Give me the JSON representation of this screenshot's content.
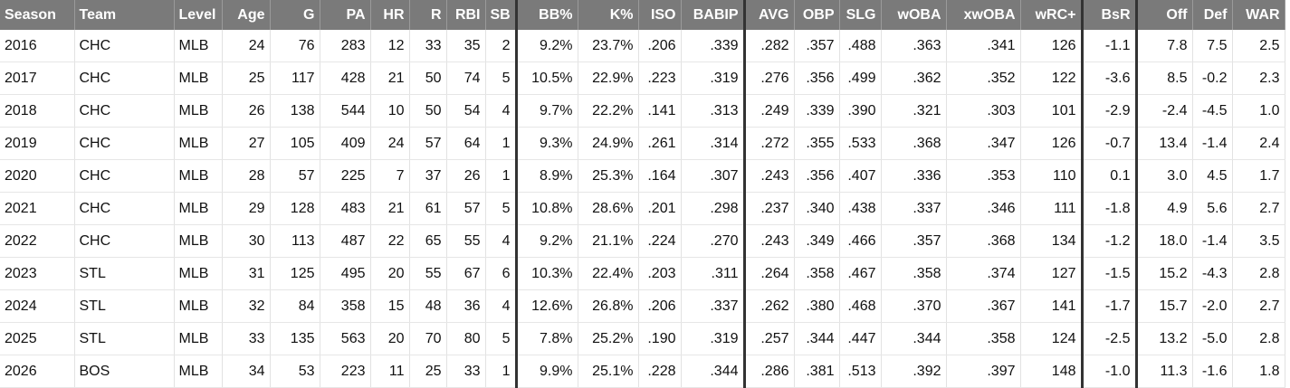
{
  "table": {
    "header": [
      "Season",
      "Team",
      "Level",
      "Age",
      "G",
      "PA",
      "HR",
      "R",
      "RBI",
      "SB",
      "BB%",
      "K%",
      "ISO",
      "BABIP",
      "AVG",
      "OBP",
      "SLG",
      "wOBA",
      "xwOBA",
      "wRC+",
      "BsR",
      "Off",
      "Def",
      "WAR"
    ],
    "rows": [
      [
        "2016",
        "CHC",
        "MLB",
        "24",
        "76",
        "283",
        "12",
        "33",
        "35",
        "2",
        "9.2%",
        "23.7%",
        ".206",
        ".339",
        ".282",
        ".357",
        ".488",
        ".363",
        ".341",
        "126",
        "-1.1",
        "7.8",
        "7.5",
        "2.5"
      ],
      [
        "2017",
        "CHC",
        "MLB",
        "25",
        "117",
        "428",
        "21",
        "50",
        "74",
        "5",
        "10.5%",
        "22.9%",
        ".223",
        ".319",
        ".276",
        ".356",
        ".499",
        ".362",
        ".352",
        "122",
        "-3.6",
        "8.5",
        "-0.2",
        "2.3"
      ],
      [
        "2018",
        "CHC",
        "MLB",
        "26",
        "138",
        "544",
        "10",
        "50",
        "54",
        "4",
        "9.7%",
        "22.2%",
        ".141",
        ".313",
        ".249",
        ".339",
        ".390",
        ".321",
        ".303",
        "101",
        "-2.9",
        "-2.4",
        "-4.5",
        "1.0"
      ],
      [
        "2019",
        "CHC",
        "MLB",
        "27",
        "105",
        "409",
        "24",
        "57",
        "64",
        "1",
        "9.3%",
        "24.9%",
        ".261",
        ".314",
        ".272",
        ".355",
        ".533",
        ".368",
        ".347",
        "126",
        "-0.7",
        "13.4",
        "-1.4",
        "2.4"
      ],
      [
        "2020",
        "CHC",
        "MLB",
        "28",
        "57",
        "225",
        "7",
        "37",
        "26",
        "1",
        "8.9%",
        "25.3%",
        ".164",
        ".307",
        ".243",
        ".356",
        ".407",
        ".336",
        ".353",
        "110",
        "0.1",
        "3.0",
        "4.5",
        "1.7"
      ],
      [
        "2021",
        "CHC",
        "MLB",
        "29",
        "128",
        "483",
        "21",
        "61",
        "57",
        "5",
        "10.8%",
        "28.6%",
        ".201",
        ".298",
        ".237",
        ".340",
        ".438",
        ".337",
        ".346",
        "111",
        "-1.8",
        "4.9",
        "5.6",
        "2.7"
      ],
      [
        "2022",
        "CHC",
        "MLB",
        "30",
        "113",
        "487",
        "22",
        "65",
        "55",
        "4",
        "9.2%",
        "21.1%",
        ".224",
        ".270",
        ".243",
        ".349",
        ".466",
        ".357",
        ".368",
        "134",
        "-1.2",
        "18.0",
        "-1.4",
        "3.5"
      ],
      [
        "2023",
        "STL",
        "MLB",
        "31",
        "125",
        "495",
        "20",
        "55",
        "67",
        "6",
        "10.3%",
        "22.4%",
        ".203",
        ".311",
        ".264",
        ".358",
        ".467",
        ".358",
        ".374",
        "127",
        "-1.5",
        "15.2",
        "-4.3",
        "2.8"
      ],
      [
        "2024",
        "STL",
        "MLB",
        "32",
        "84",
        "358",
        "15",
        "48",
        "36",
        "4",
        "12.6%",
        "26.8%",
        ".206",
        ".337",
        ".262",
        ".380",
        ".468",
        ".370",
        ".367",
        "141",
        "-1.7",
        "15.7",
        "-2.0",
        "2.7"
      ],
      [
        "2025",
        "STL",
        "MLB",
        "33",
        "135",
        "563",
        "20",
        "70",
        "80",
        "5",
        "7.8%",
        "25.2%",
        ".190",
        ".319",
        ".257",
        ".344",
        ".447",
        ".344",
        ".358",
        "124",
        "-2.5",
        "13.2",
        "-5.0",
        "2.8"
      ],
      [
        "2026",
        "BOS",
        "MLB",
        "34",
        "53",
        "223",
        "11",
        "25",
        "33",
        "1",
        "9.9%",
        "25.1%",
        ".228",
        ".344",
        ".286",
        ".381",
        ".513",
        ".392",
        ".397",
        "148",
        "-1.0",
        "11.3",
        "-1.6",
        "1.8"
      ]
    ]
  }
}
